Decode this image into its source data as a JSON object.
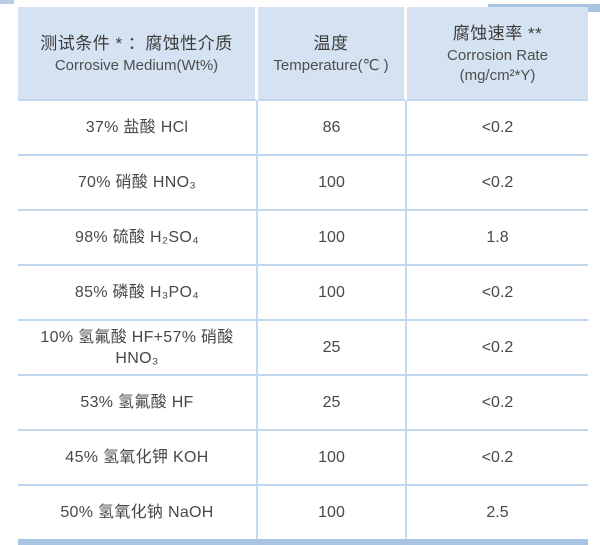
{
  "table": {
    "title_semantic": "corrosion-resistance-test-table",
    "columns": [
      {
        "zh": "测试条件 * ：腐蚀性介质",
        "en": "Corrosive Medium(Wt%)"
      },
      {
        "zh": "温度",
        "en": "Temperature(℃ )"
      },
      {
        "zh": "腐蚀速率 **",
        "en": "Corrosion Rate",
        "en2": "(mg/cm²*Y)"
      }
    ],
    "rows": [
      {
        "medium": "37% 盐酸 HCl",
        "temperature": "86",
        "rate": "<0.2"
      },
      {
        "medium": "70% 硝酸 HNO₃",
        "temperature": "100",
        "rate": "<0.2"
      },
      {
        "medium": "98% 硫酸 H₂SO₄",
        "temperature": "100",
        "rate": "1.8"
      },
      {
        "medium": "85% 磷酸 H₃PO₄",
        "temperature": "100",
        "rate": "<0.2"
      },
      {
        "medium": "10% 氢氟酸 HF+57% 硝酸\nHNO₃",
        "temperature": "25",
        "rate": "<0.2"
      },
      {
        "medium": "53% 氢氟酸 HF",
        "temperature": "25",
        "rate": "<0.2"
      },
      {
        "medium": "45% 氢氧化钾 KOH",
        "temperature": "100",
        "rate": "<0.2"
      },
      {
        "medium": "50% 氢氧化钠 NaOH",
        "temperature": "100",
        "rate": "2.5"
      }
    ]
  },
  "colors": {
    "header_background": "#d4e2f2",
    "divider_line": "#c0d6ec",
    "header_cell_gap": "#ffffff",
    "bottom_bar": "#a8c5e3",
    "text": "#484848",
    "page_background": "#ffffff"
  }
}
